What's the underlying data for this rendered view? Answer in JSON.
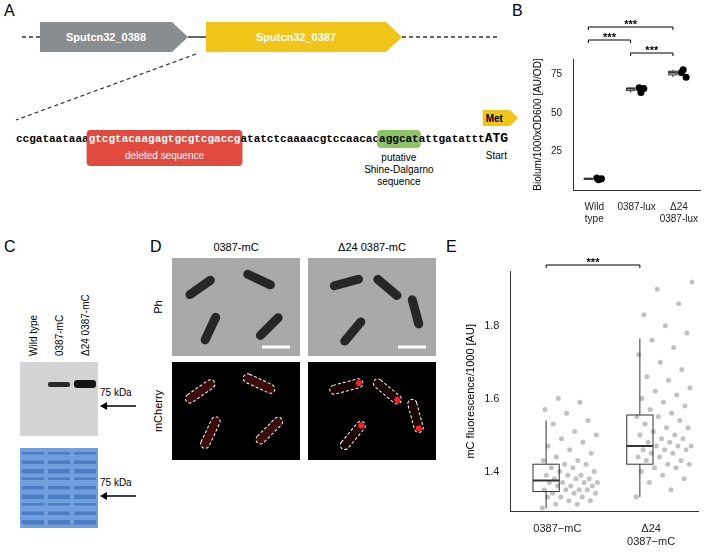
{
  "diagram": {
    "panel": "A",
    "genes": [
      {
        "label": "Sputcn32_0388",
        "color": "#8a8d8f"
      },
      {
        "label": "Sputcn32_0387",
        "color": "#f0c419"
      }
    ],
    "sequence": [
      {
        "text": "ccgataataaa"
      },
      {
        "text": "gtcgtacaagagtgcgtcgaccg",
        "label": "deleted sequence",
        "color": "#e04a3f"
      },
      {
        "text": "atatctcaaaacgtccaacac"
      },
      {
        "text": "aggcat",
        "label": "putative Shine-Dalgarno sequence",
        "color": "#8cc466"
      },
      {
        "text": "attgatattt"
      },
      {
        "text": "ATG",
        "label": "Start"
      }
    ],
    "start_codon": {
      "label": "Met",
      "color": "#f0c419"
    }
  },
  "blot": {
    "panel": "C",
    "lanes": [
      "Wild type",
      "0387-mC",
      "Δ24 0387-mC"
    ],
    "size_label": "75 kDa"
  },
  "microscopy": {
    "panel": "D",
    "columns": [
      "0387-mC",
      "Δ24 0387-mC"
    ],
    "rows": [
      "Ph",
      "mCherry"
    ]
  },
  "chart_data": [
    {
      "panel": "B",
      "type": "box",
      "categories": [
        "Wild type",
        "0387-lux",
        "Δ24 0387-lux"
      ],
      "y_label": "Biolum/1000xOD600 [AU/OD]",
      "ylim": [
        0,
        85
      ],
      "yticks": [
        25,
        50,
        75
      ],
      "grid": false,
      "color": "#000000",
      "boxes": [
        {
          "whisker_low": 6.6,
          "q1": 6.95,
          "median": 7.3,
          "q3": 7.55,
          "whisker_high": 7.8
        },
        {
          "whisker_low": 63.2,
          "q1": 64.5,
          "median": 65.8,
          "q3": 66.05,
          "whisker_high": 66.3
        },
        {
          "whisker_low": 73.2,
          "q1": 74.7,
          "median": 76.2,
          "q3": 77.1,
          "whisker_high": 78.0
        }
      ],
      "points": [
        [
          7.8,
          7.3,
          6.6
        ],
        [
          66.3,
          65.8,
          63.2
        ],
        [
          76.2,
          73.2,
          78.0
        ]
      ],
      "significance": [
        {
          "from": "Wild type",
          "to": "Δ24 0387-lux",
          "label": "***"
        },
        {
          "from": "Wild type",
          "to": "0387-lux",
          "label": "***"
        },
        {
          "from": "0387-lux",
          "to": "Δ24 0387-lux",
          "label": "***"
        }
      ]
    },
    {
      "panel": "E",
      "type": "box",
      "categories": [
        "0387−mC",
        "Δ24 0387−mC"
      ],
      "y_label": "mC fluorescence/1000 [AU]",
      "ylim": [
        1.29,
        1.95
      ],
      "yticks": [
        1.4,
        1.6,
        1.8
      ],
      "grid": false,
      "color": "#333333",
      "boxes": [
        {
          "whisker_low": 1.3,
          "q1": 1.345,
          "median": 1.375,
          "q3": 1.42,
          "whisker_high": 1.54
        },
        {
          "whisker_low": 1.33,
          "q1": 1.42,
          "median": 1.47,
          "q3": 1.555,
          "whisker_high": 1.765
        }
      ],
      "points": [
        [
          1.3,
          1.31,
          1.31,
          1.32,
          1.32,
          1.33,
          1.33,
          1.33,
          1.34,
          1.34,
          1.34,
          1.35,
          1.35,
          1.35,
          1.35,
          1.36,
          1.36,
          1.36,
          1.37,
          1.37,
          1.37,
          1.37,
          1.38,
          1.38,
          1.38,
          1.39,
          1.39,
          1.39,
          1.4,
          1.4,
          1.41,
          1.41,
          1.42,
          1.42,
          1.43,
          1.43,
          1.44,
          1.45,
          1.46,
          1.47,
          1.48,
          1.49,
          1.5,
          1.51,
          1.53,
          1.54,
          1.56,
          1.57,
          1.59,
          1.6
        ],
        [
          1.33,
          1.35,
          1.37,
          1.38,
          1.39,
          1.4,
          1.41,
          1.41,
          1.42,
          1.42,
          1.43,
          1.43,
          1.44,
          1.44,
          1.45,
          1.45,
          1.46,
          1.46,
          1.46,
          1.47,
          1.47,
          1.47,
          1.48,
          1.48,
          1.49,
          1.49,
          1.5,
          1.5,
          1.51,
          1.52,
          1.52,
          1.53,
          1.54,
          1.55,
          1.55,
          1.56,
          1.57,
          1.58,
          1.59,
          1.6,
          1.61,
          1.62,
          1.63,
          1.65,
          1.66,
          1.68,
          1.7,
          1.72,
          1.74,
          1.76,
          1.78,
          1.8,
          1.83,
          1.86,
          1.9,
          1.92
        ]
      ],
      "significance": [
        {
          "from": "0387−mC",
          "to": "Δ24 0387−mC",
          "label": "***"
        }
      ]
    }
  ]
}
